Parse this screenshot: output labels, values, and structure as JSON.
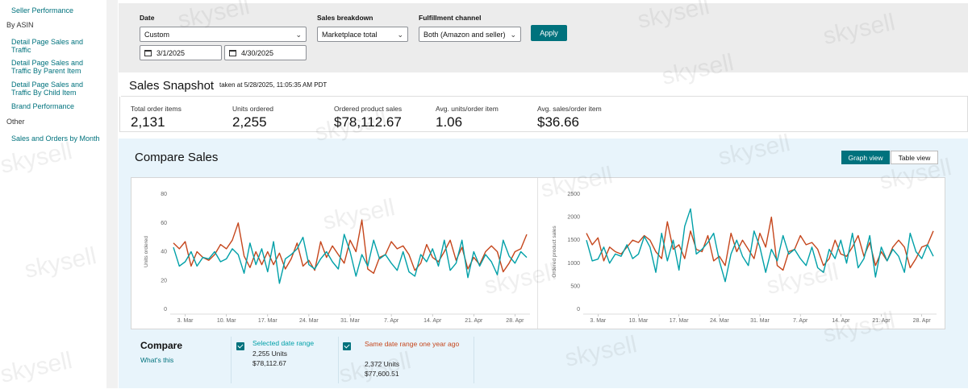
{
  "sidebar": {
    "links": [
      {
        "label": "Seller Performance"
      },
      {
        "label": "Detail Page Sales and Traffic"
      },
      {
        "label": "Detail Page Sales and Traffic By Parent Item"
      },
      {
        "label": "Detail Page Sales and Traffic By Child Item"
      },
      {
        "label": "Brand Performance"
      },
      {
        "label": "Sales and Orders by Month"
      }
    ],
    "section_by_asin": "By ASIN",
    "section_other": "Other"
  },
  "filters": {
    "date_label": "Date",
    "date_value": "Custom",
    "start_date": "3/1/2025",
    "end_date": "4/30/2025",
    "breakdown_label": "Sales breakdown",
    "breakdown_value": "Marketplace total",
    "fulfillment_label": "Fulfillment channel",
    "fulfillment_value": "Both (Amazon and seller)",
    "apply_label": "Apply"
  },
  "snapshot": {
    "title": "Sales Snapshot",
    "taken_at": "taken at 5/28/2025, 11:05:35 AM PDT",
    "metrics": [
      {
        "label": "Total order items",
        "value": "2,131"
      },
      {
        "label": "Units ordered",
        "value": "2,255"
      },
      {
        "label": "Ordered product sales",
        "value": "$78,112.67"
      },
      {
        "label": "Avg. units/order item",
        "value": "1.06"
      },
      {
        "label": "Avg. sales/order item",
        "value": "$36.66"
      }
    ]
  },
  "compare": {
    "title": "Compare Sales",
    "graph_view_label": "Graph view",
    "table_view_label": "Table view",
    "compare_label": "Compare",
    "whats_this": "What's this",
    "selected": {
      "name": "Selected date range",
      "units": "2,255 Units",
      "sales": "$78,112.67",
      "color": "#00a0a8"
    },
    "last_year": {
      "name": "Same date range one year ago",
      "units": "2,372 Units",
      "sales": "$77,600.51",
      "color": "#c5461c"
    }
  },
  "watermark_text": "skysell",
  "chart_data": [
    {
      "type": "line",
      "ylabel": "Units ordered",
      "ylim": [
        0,
        80
      ],
      "yticks": [
        0,
        20,
        40,
        60,
        80
      ],
      "x_ticks": [
        "3. Mar",
        "10. Mar",
        "17. Mar",
        "24. Mar",
        "31. Mar",
        "7. Apr",
        "14. Apr",
        "21. Apr",
        "28. Apr"
      ],
      "x_count": 61,
      "grid": false,
      "series": [
        {
          "name": "Selected date range",
          "color": "#00a0a8",
          "values": [
            43,
            30,
            33,
            40,
            30,
            36,
            35,
            40,
            33,
            35,
            42,
            38,
            25,
            46,
            31,
            42,
            26,
            47,
            18,
            35,
            38,
            42,
            50,
            31,
            28,
            35,
            40,
            33,
            28,
            52,
            40,
            23,
            38,
            30,
            48,
            35,
            38,
            32,
            27,
            40,
            26,
            23,
            38,
            33,
            42,
            30,
            48,
            27,
            32,
            48,
            22,
            40,
            30,
            38,
            33,
            24,
            48,
            37,
            32,
            40,
            36
          ]
        },
        {
          "name": "Same date range one year ago",
          "color": "#c5461c",
          "values": [
            46,
            42,
            47,
            30,
            40,
            36,
            34,
            38,
            45,
            42,
            48,
            60,
            37,
            29,
            40,
            31,
            40,
            31,
            39,
            28,
            35,
            46,
            30,
            34,
            27,
            47,
            36,
            44,
            38,
            32,
            48,
            40,
            62,
            28,
            25,
            36,
            38,
            47,
            42,
            44,
            38,
            27,
            32,
            45,
            36,
            33,
            40,
            48,
            34,
            43,
            28,
            36,
            31,
            40,
            44,
            40,
            26,
            32,
            40,
            42,
            52
          ]
        }
      ]
    },
    {
      "type": "line",
      "ylabel": "Ordered product sales",
      "ylim": [
        0,
        2500
      ],
      "yticks": [
        0,
        500,
        1000,
        1500,
        2000,
        2500
      ],
      "x_ticks": [
        "3. Mar",
        "10. Mar",
        "17. Mar",
        "24. Mar",
        "31. Mar",
        "7. Apr",
        "14. Apr",
        "21. Apr",
        "28. Apr"
      ],
      "x_count": 61,
      "grid": false,
      "series": [
        {
          "name": "Selected date range",
          "color": "#00a0a8",
          "values": [
            1500,
            1050,
            1090,
            1350,
            1000,
            1200,
            1150,
            1400,
            1100,
            1200,
            1580,
            1350,
            800,
            1650,
            1050,
            1500,
            850,
            1800,
            2180,
            1200,
            1300,
            1450,
            1650,
            1050,
            600,
            1200,
            1500,
            1150,
            950,
            1700,
            1350,
            800,
            1300,
            1050,
            1600,
            1200,
            1300,
            1100,
            950,
            1350,
            900,
            800,
            1300,
            1100,
            1500,
            1000,
            1650,
            900,
            1100,
            1600,
            700,
            1350,
            1050,
            1300,
            1150,
            800,
            1650,
            1250,
            1100,
            1400,
            1150
          ]
        },
        {
          "name": "Same date range one year ago",
          "color": "#c5461c",
          "values": [
            1650,
            1400,
            1550,
            1050,
            1350,
            1250,
            1200,
            1350,
            1500,
            1450,
            1600,
            1500,
            1250,
            1100,
            1900,
            1300,
            1400,
            1100,
            1700,
            1300,
            1250,
            1600,
            1050,
            1150,
            950,
            1650,
            1250,
            1500,
            1300,
            1100,
            1650,
            1350,
            2000,
            950,
            850,
            1250,
            1300,
            1600,
            1400,
            1450,
            1300,
            950,
            1100,
            1500,
            1200,
            1150,
            1350,
            1600,
            1150,
            1450,
            950,
            1250,
            1050,
            1350,
            1500,
            1350,
            900,
            1100,
            1350,
            1400,
            1700
          ]
        }
      ]
    }
  ]
}
